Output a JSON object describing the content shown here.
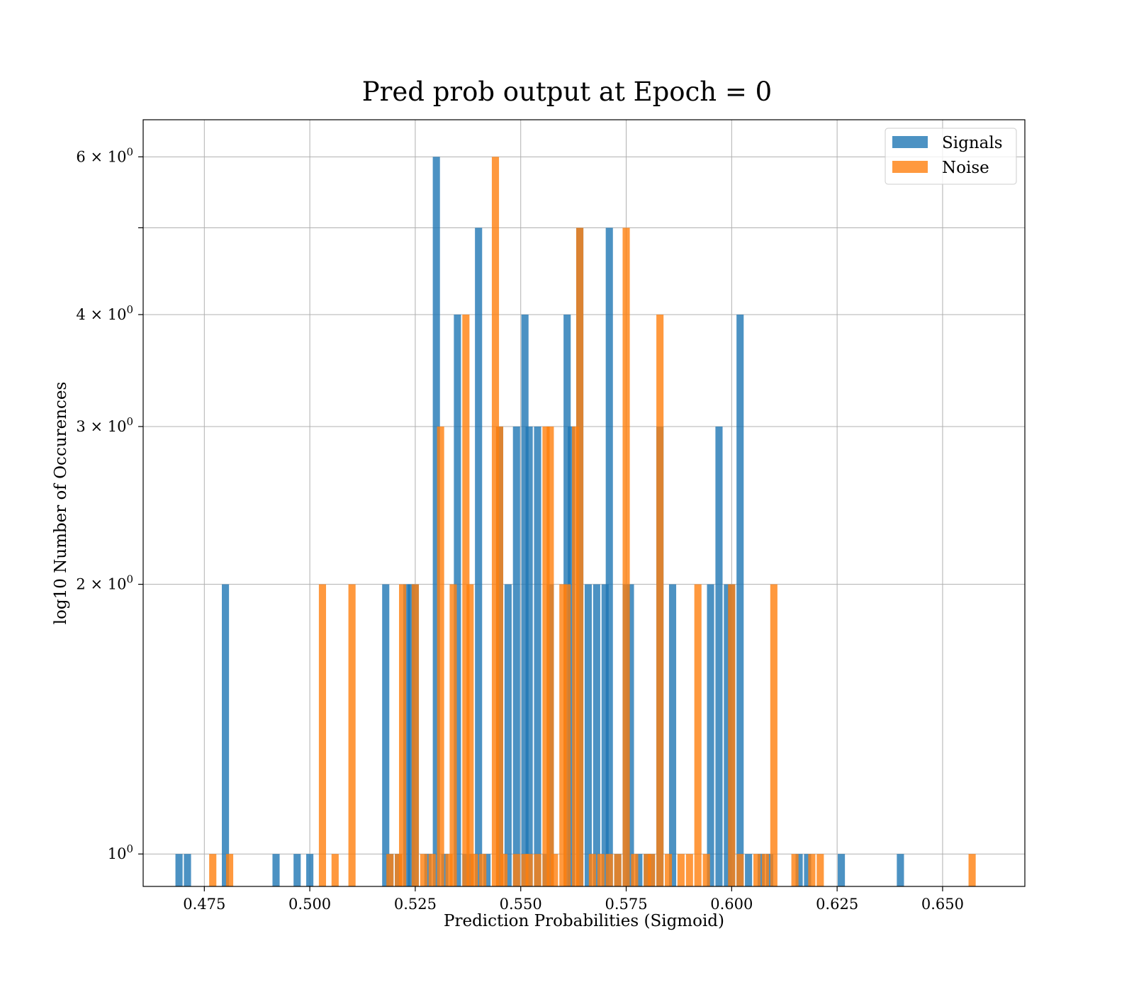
{
  "chart_data": {
    "type": "bar",
    "title": "Pred prob output at Epoch = 0",
    "xlabel": "Prediction Probabilities (Sigmoid)",
    "ylabel": "log10 Number of Occurences",
    "y_scale": "log",
    "xlim": [
      0.4605,
      0.6695
    ],
    "ylim": [
      0.92,
      6.6
    ],
    "bin_width": 0.0017,
    "grid": true,
    "legend_position": "top-right",
    "x_ticks": [
      0.475,
      0.5,
      0.525,
      0.55,
      0.575,
      0.6,
      0.625,
      0.65
    ],
    "x_tick_labels": [
      "0.475",
      "0.500",
      "0.525",
      "0.550",
      "0.575",
      "0.600",
      "0.625",
      "0.650"
    ],
    "y_ticks": [
      1,
      2,
      3,
      4,
      5,
      6
    ],
    "y_tick_labels": [
      {
        "base": "10",
        "exp": "0"
      },
      {
        "base": "2 × 10",
        "exp": "0"
      },
      {
        "base": "3 × 10",
        "exp": "0"
      },
      {
        "base": "4 × 10",
        "exp": "0"
      },
      {
        "base": "",
        "exp": ""
      },
      {
        "base": "6 × 10",
        "exp": "0"
      }
    ],
    "series": [
      {
        "name": "Signals",
        "color": "#1f77b4",
        "opacity": 0.8,
        "x": [
          0.469,
          0.471,
          0.48,
          0.492,
          0.497,
          0.5,
          0.518,
          0.519,
          0.521,
          0.523,
          0.524,
          0.525,
          0.528,
          0.53,
          0.532,
          0.535,
          0.537,
          0.538,
          0.54,
          0.542,
          0.545,
          0.547,
          0.549,
          0.551,
          0.552,
          0.554,
          0.556,
          0.557,
          0.561,
          0.562,
          0.564,
          0.566,
          0.568,
          0.57,
          0.571,
          0.573,
          0.575,
          0.576,
          0.578,
          0.58,
          0.581,
          0.583,
          0.586,
          0.595,
          0.597,
          0.599,
          0.6,
          0.602,
          0.604,
          0.607,
          0.609,
          0.616,
          0.618,
          0.626,
          0.64
        ],
        "values": [
          1,
          1,
          2,
          1,
          1,
          1,
          2,
          1,
          1,
          2,
          2,
          2,
          1,
          6,
          1,
          4,
          1,
          1,
          5,
          1,
          3,
          2,
          3,
          4,
          3,
          3,
          1,
          2,
          4,
          3,
          5,
          2,
          2,
          2,
          5,
          1,
          2,
          2,
          1,
          1,
          1,
          3,
          2,
          2,
          3,
          2,
          2,
          4,
          1,
          1,
          1,
          1,
          1,
          1,
          1
        ]
      },
      {
        "name": "Noise",
        "color": "#ff7f0e",
        "opacity": 0.8,
        "x": [
          0.477,
          0.481,
          0.503,
          0.506,
          0.51,
          0.519,
          0.521,
          0.522,
          0.525,
          0.527,
          0.529,
          0.531,
          0.533,
          0.534,
          0.537,
          0.538,
          0.539,
          0.541,
          0.544,
          0.545,
          0.546,
          0.549,
          0.551,
          0.552,
          0.554,
          0.556,
          0.557,
          0.558,
          0.56,
          0.561,
          0.563,
          0.564,
          0.567,
          0.569,
          0.571,
          0.573,
          0.575,
          0.577,
          0.58,
          0.581,
          0.583,
          0.585,
          0.588,
          0.59,
          0.592,
          0.594,
          0.6,
          0.602,
          0.606,
          0.608,
          0.61,
          0.615,
          0.619,
          0.621,
          0.657
        ],
        "values": [
          1,
          1,
          2,
          1,
          2,
          1,
          1,
          2,
          2,
          1,
          1,
          3,
          1,
          2,
          4,
          2,
          1,
          1,
          6,
          3,
          1,
          1,
          1,
          1,
          1,
          3,
          3,
          1,
          2,
          2,
          3,
          5,
          1,
          1,
          1,
          1,
          5,
          1,
          1,
          1,
          4,
          1,
          1,
          1,
          2,
          1,
          2,
          1,
          1,
          1,
          2,
          1,
          1,
          1,
          1
        ]
      }
    ]
  }
}
